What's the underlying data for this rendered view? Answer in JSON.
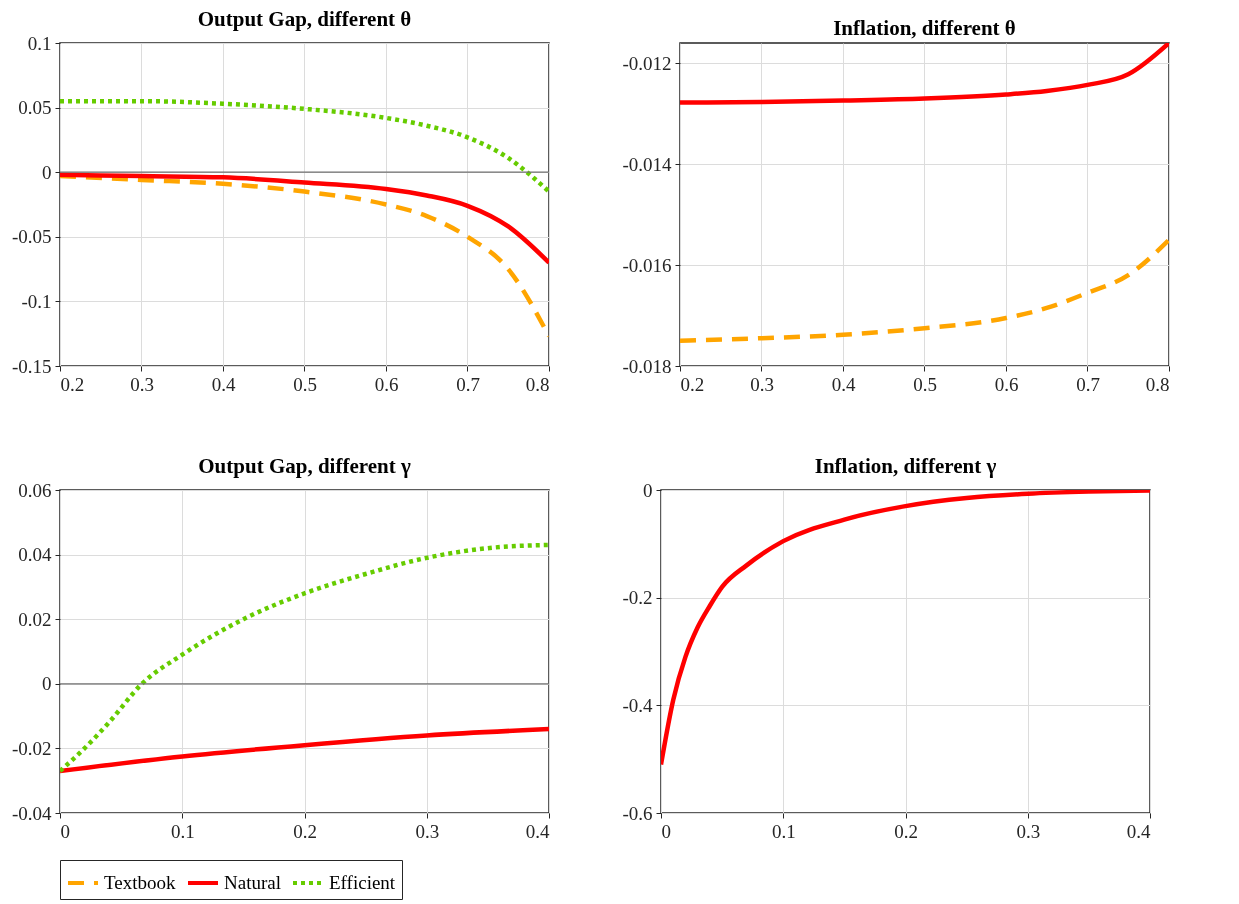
{
  "chart_data": [
    {
      "type": "line",
      "title": "Output Gap, different θ",
      "xlim": [
        0.2,
        0.8
      ],
      "xticks": [
        0.2,
        0.3,
        0.4,
        0.5,
        0.6,
        0.7,
        0.8
      ],
      "ylim": [
        -0.15,
        0.1
      ],
      "yticks": [
        -0.15,
        -0.1,
        -0.05,
        0,
        0.05,
        0.1
      ],
      "grid": true,
      "legend": "bottom",
      "ref_lines": [
        {
          "axis": "y",
          "value": 0,
          "color": "#707070"
        }
      ],
      "x": [
        0.2,
        0.3,
        0.4,
        0.5,
        0.6,
        0.65,
        0.7,
        0.75,
        0.8
      ],
      "series": [
        {
          "name": "Textbook",
          "color": "#ffa500",
          "line_style": "dashed",
          "values": [
            -0.003,
            -0.006,
            -0.009,
            -0.015,
            -0.025,
            -0.034,
            -0.05,
            -0.075,
            -0.127
          ]
        },
        {
          "name": "Natural",
          "color": "#ff0000",
          "line_style": "solid",
          "values": [
            -0.002,
            -0.003,
            -0.004,
            -0.008,
            -0.013,
            -0.018,
            -0.026,
            -0.042,
            -0.07
          ]
        },
        {
          "name": "Efficient",
          "color": "#66cc00",
          "line_style": "dotted",
          "values": [
            0.055,
            0.055,
            0.053,
            0.049,
            0.042,
            0.036,
            0.027,
            0.011,
            -0.015
          ]
        }
      ]
    },
    {
      "type": "line",
      "title": "Inflation, different θ",
      "xlim": [
        0.2,
        0.8
      ],
      "xticks": [
        0.2,
        0.3,
        0.4,
        0.5,
        0.6,
        0.7,
        0.8
      ],
      "ylim": [
        -0.018,
        -0.0116
      ],
      "yticks": [
        -0.018,
        -0.016,
        -0.014,
        -0.012
      ],
      "grid": true,
      "legend": "bottom",
      "x": [
        0.2,
        0.3,
        0.4,
        0.5,
        0.6,
        0.65,
        0.7,
        0.75,
        0.8
      ],
      "series": [
        {
          "name": "Textbook",
          "color": "#ffa500",
          "line_style": "dashed",
          "values": [
            -0.0175,
            -0.01745,
            -0.01738,
            -0.01725,
            -0.01705,
            -0.01685,
            -0.01655,
            -0.0162,
            -0.0155
          ]
        },
        {
          "name": "Natural",
          "color": "#ff0000",
          "line_style": "solid",
          "values": [
            -0.01278,
            -0.01277,
            -0.01274,
            -0.0127,
            -0.01262,
            -0.01255,
            -0.01243,
            -0.01222,
            -0.0116
          ]
        }
      ]
    },
    {
      "type": "line",
      "title": "Output Gap, different γ",
      "xlim": [
        0,
        0.4
      ],
      "xticks": [
        0,
        0.1,
        0.2,
        0.3,
        0.4
      ],
      "ylim": [
        -0.04,
        0.06
      ],
      "yticks": [
        -0.04,
        -0.02,
        0,
        0.02,
        0.04,
        0.06
      ],
      "grid": true,
      "legend": "bottom",
      "ref_lines": [
        {
          "axis": "y",
          "value": 0,
          "color": "#707070"
        }
      ],
      "series": [
        {
          "name": "Natural",
          "color": "#ff0000",
          "line_style": "solid",
          "x": [
            0,
            0.1,
            0.2,
            0.3,
            0.4
          ],
          "values": [
            -0.027,
            -0.0225,
            -0.019,
            -0.016,
            -0.014
          ]
        },
        {
          "name": "Efficient",
          "color": "#66cc00",
          "line_style": "dotted",
          "x": [
            0,
            0.02,
            0.04,
            0.067,
            0.1,
            0.15,
            0.2,
            0.25,
            0.3,
            0.35,
            0.4
          ],
          "values": [
            -0.027,
            -0.02,
            -0.012,
            0,
            0.009,
            0.02,
            0.028,
            0.034,
            0.039,
            0.042,
            0.043
          ]
        }
      ]
    },
    {
      "type": "line",
      "title": "Inflation, different γ",
      "xlim": [
        0,
        0.4
      ],
      "xticks": [
        0,
        0.1,
        0.2,
        0.3,
        0.4
      ],
      "ylim": [
        -0.6,
        0
      ],
      "yticks": [
        -0.6,
        -0.4,
        -0.2,
        0
      ],
      "grid": true,
      "legend": "bottom",
      "x": [
        0,
        0.01,
        0.02,
        0.03,
        0.04,
        0.05,
        0.07,
        0.1,
        0.15,
        0.2,
        0.25,
        0.3,
        0.35,
        0.4
      ],
      "series": [
        {
          "name": "Natural",
          "color": "#ff0000",
          "line_style": "solid",
          "values": [
            -0.51,
            -0.39,
            -0.31,
            -0.255,
            -0.215,
            -0.18,
            -0.14,
            -0.095,
            -0.055,
            -0.03,
            -0.015,
            -0.007,
            -0.003,
            -0.001
          ]
        }
      ]
    }
  ]
}
